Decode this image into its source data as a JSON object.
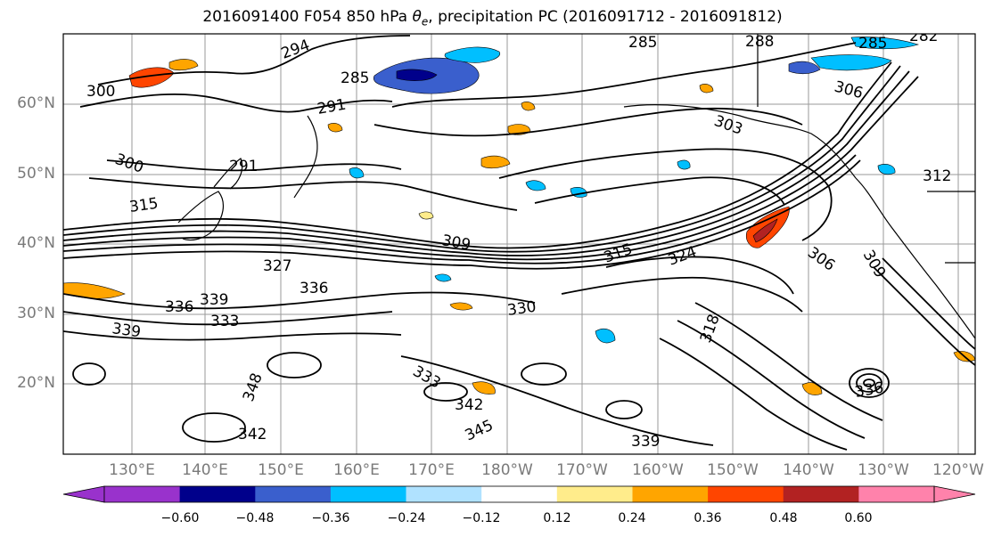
{
  "title": {
    "prefix": "2016091400 F054 850 hPa ",
    "symbol": "θ",
    "symbol_sub": "e",
    "suffix": ", precipitation PC (2016091712 - 2016091812)"
  },
  "lat_labels": [
    "60°N",
    "50°N",
    "40°N",
    "30°N",
    "20°N"
  ],
  "lon_labels": [
    "130°E",
    "140°E",
    "150°E",
    "160°E",
    "170°E",
    "180°W",
    "170°W",
    "160°W",
    "150°W",
    "140°W",
    "130°W",
    "120°W"
  ],
  "contour_labels": [
    "294",
    "300",
    "285",
    "291",
    "300",
    "291",
    "315",
    "303",
    "306",
    "312",
    "285",
    "288",
    "285",
    "282",
    "309",
    "327",
    "315",
    "324",
    "306",
    "309",
    "336",
    "336",
    "339",
    "339",
    "333",
    "330",
    "318",
    "342",
    "345",
    "342",
    "339",
    "336",
    "348",
    "333"
  ],
  "colorbar": {
    "ticks": [
      "−0.60",
      "−0.48",
      "−0.36",
      "−0.24",
      "−0.12",
      "0.12",
      "0.24",
      "0.36",
      "0.48",
      "0.60"
    ],
    "colors": [
      "#9932cc",
      "#00008b",
      "#3a5fcd",
      "#00bfff",
      "#b0e2ff",
      "#ffffff",
      "#ffec8b",
      "#ffa500",
      "#ff4500",
      "#b22222",
      "#ff82ab"
    ]
  }
}
